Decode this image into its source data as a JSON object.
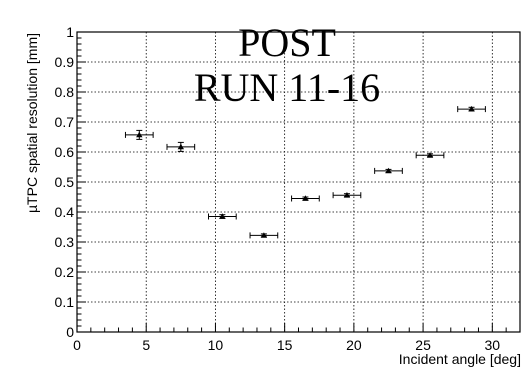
{
  "chart_data": {
    "type": "scatter",
    "title_lines": [
      "POST",
      "RUN 11-16"
    ],
    "xlabel": "Incident angle [deg]",
    "ylabel": "µTPC spatial resolution [mm]",
    "xlim": [
      0,
      32
    ],
    "ylim": [
      0,
      1
    ],
    "x_ticks": [
      0,
      5,
      10,
      15,
      20,
      25,
      30
    ],
    "y_ticks": [
      0,
      0.1,
      0.2,
      0.3,
      0.4,
      0.5,
      0.6,
      0.7,
      0.8,
      0.9,
      1
    ],
    "x_tick_labels": [
      "0",
      "5",
      "10",
      "15",
      "20",
      "25",
      "30"
    ],
    "y_tick_labels": [
      "0",
      "0.1",
      "0.2",
      "0.3",
      "0.4",
      "0.5",
      "0.6",
      "0.7",
      "0.8",
      "0.9",
      "1"
    ],
    "grid": true,
    "marker": "triangle",
    "marker_color": "#000000",
    "points": [
      {
        "x": 4.5,
        "y": 0.657,
        "xerr": 1.0,
        "yerr": 0.015
      },
      {
        "x": 7.5,
        "y": 0.617,
        "xerr": 1.0,
        "yerr": 0.015
      },
      {
        "x": 10.5,
        "y": 0.385,
        "xerr": 1.0,
        "yerr": 0.006
      },
      {
        "x": 13.5,
        "y": 0.322,
        "xerr": 1.0,
        "yerr": 0.005
      },
      {
        "x": 16.5,
        "y": 0.445,
        "xerr": 1.0,
        "yerr": 0.005
      },
      {
        "x": 19.5,
        "y": 0.456,
        "xerr": 1.0,
        "yerr": 0.005
      },
      {
        "x": 22.5,
        "y": 0.537,
        "xerr": 1.0,
        "yerr": 0.005
      },
      {
        "x": 25.5,
        "y": 0.589,
        "xerr": 1.0,
        "yerr": 0.005
      },
      {
        "x": 28.5,
        "y": 0.743,
        "xerr": 1.0,
        "yerr": 0.006
      }
    ]
  }
}
